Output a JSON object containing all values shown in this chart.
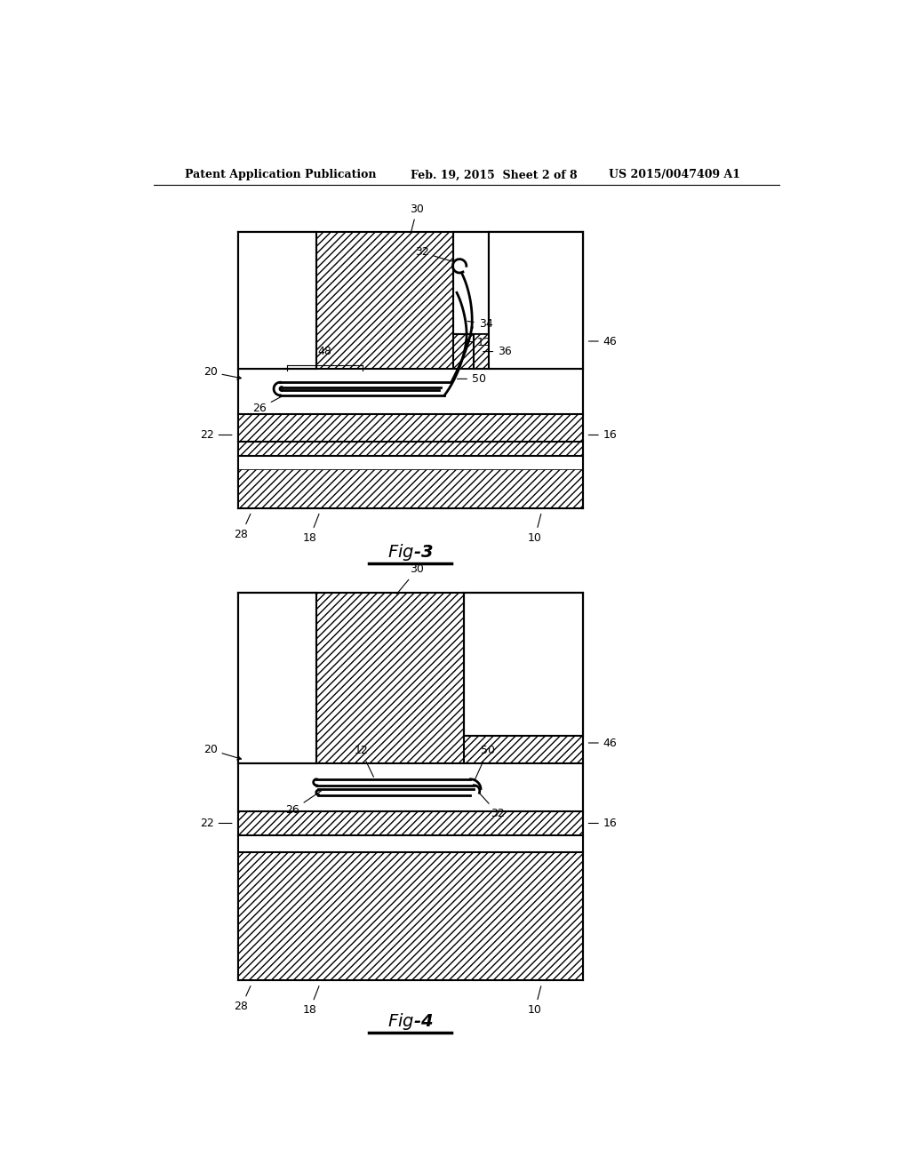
{
  "background_color": "#ffffff",
  "header_left": "Patent Application Publication",
  "header_mid": "Feb. 19, 2015  Sheet 2 of 8",
  "header_right": "US 2015/0047409 A1",
  "fig3_title": "Fig-3",
  "fig4_title": "Fig-4"
}
